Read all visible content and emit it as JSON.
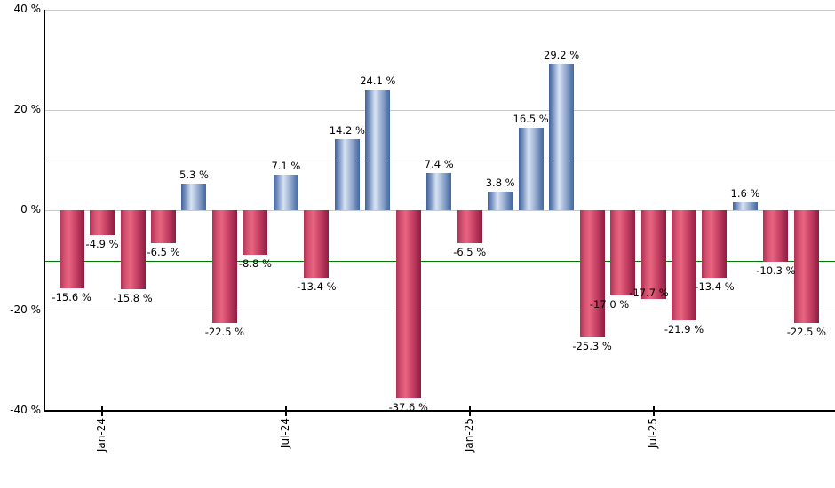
{
  "chart_data": {
    "type": "bar",
    "title": "",
    "xlabel": "",
    "ylabel": "",
    "unit": "%",
    "ylim": [
      -40,
      40
    ],
    "grid": "on",
    "legend": "none",
    "gridline_values": [
      40,
      20,
      0,
      -20
    ],
    "axis_bottom_value": -40,
    "threshold_lines": {
      "values": [
        10,
        -10
      ],
      "color": "#007a00"
    },
    "yticks": [
      {
        "value": 40,
        "label": "40 %"
      },
      {
        "value": 20,
        "label": "20 %"
      },
      {
        "value": 0,
        "label": "0 %"
      },
      {
        "value": -20,
        "label": "-20 %"
      },
      {
        "value": -40,
        "label": "-40 %"
      }
    ],
    "xticks": [
      {
        "index": 1,
        "label": "Jan-24"
      },
      {
        "index": 7,
        "label": "Jul-24"
      },
      {
        "index": 13,
        "label": "Jan-25"
      },
      {
        "index": 19,
        "label": "Jul-25"
      }
    ],
    "colors": {
      "positive_bar": "#8aa4cf",
      "negative_bar": "#c23a5f",
      "gridline": "#c9c9c9",
      "threshold": "#007a00",
      "axis": "#000000",
      "label_text": "#000000"
    },
    "points": [
      {
        "x": "Dec-23",
        "value": -15.6,
        "label": "-15.6 %"
      },
      {
        "x": "Jan-24",
        "value": -4.9,
        "label": "-4.9 %"
      },
      {
        "x": "Feb-24",
        "value": -15.8,
        "label": "-15.8 %"
      },
      {
        "x": "Mar-24",
        "value": -6.5,
        "label": "-6.5 %"
      },
      {
        "x": "Apr-24",
        "value": 5.3,
        "label": "5.3 %"
      },
      {
        "x": "May-24",
        "value": -22.5,
        "label": "-22.5 %"
      },
      {
        "x": "Jun-24",
        "value": -8.8,
        "label": "-8.8 %"
      },
      {
        "x": "Jul-24",
        "value": 7.1,
        "label": "7.1 %"
      },
      {
        "x": "Aug-24",
        "value": -13.4,
        "label": "-13.4 %"
      },
      {
        "x": "Sep-24",
        "value": 14.2,
        "label": "14.2 %"
      },
      {
        "x": "Oct-24",
        "value": 24.1,
        "label": "24.1 %"
      },
      {
        "x": "Nov-24",
        "value": -37.6,
        "label": "-37.6 %"
      },
      {
        "x": "Dec-24",
        "value": 7.4,
        "label": "7.4 %"
      },
      {
        "x": "Jan-25",
        "value": -6.5,
        "label": "-6.5 %"
      },
      {
        "x": "Feb-25",
        "value": 3.8,
        "label": "3.8 %"
      },
      {
        "x": "Mar-25",
        "value": 16.5,
        "label": "16.5 %"
      },
      {
        "x": "Apr-25",
        "value": 29.2,
        "label": "29.2 %"
      },
      {
        "x": "May-25",
        "value": -25.3,
        "label": "-25.3 %"
      },
      {
        "x": "Jun-25",
        "value": -17.0,
        "label": "-17.0 %",
        "ldx": -15
      },
      {
        "x": "Jul-25",
        "value": -17.7,
        "label": "-17.7 %",
        "ldx": -5,
        "ldy": -17
      },
      {
        "x": "Aug-25",
        "value": -21.9,
        "label": "-21.9 %"
      },
      {
        "x": "Sep-25",
        "value": -13.4,
        "label": "-13.4 %"
      },
      {
        "x": "Oct-25",
        "value": 1.6,
        "label": "1.6 %"
      },
      {
        "x": "Nov-25",
        "value": -10.3,
        "label": "-10.3 %"
      },
      {
        "x": "Dec-25",
        "value": -22.5,
        "label": "-22.5 %"
      }
    ]
  }
}
